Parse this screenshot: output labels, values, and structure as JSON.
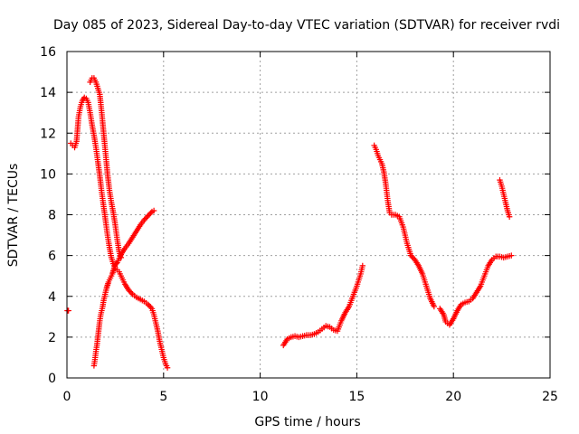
{
  "chart_data": {
    "type": "scatter",
    "title": "Day 085 of 2023, Sidereal Day-to-day VTEC variation (SDTVAR) for receiver rvdi",
    "xlabel": "GPS time / hours",
    "ylabel": "SDTVAR / TECUs",
    "xlim": [
      0,
      25
    ],
    "ylim": [
      0,
      16
    ],
    "xticks": [
      0,
      5,
      10,
      15,
      20,
      25
    ],
    "yticks": [
      0,
      2,
      4,
      6,
      8,
      10,
      12,
      14,
      16
    ],
    "grid": true,
    "marker": "+",
    "color": "#ff0000",
    "series": [
      {
        "name": "arc-1",
        "x": [
          0.02,
          0.05,
          0.08
        ],
        "y": [
          3.3,
          3.3,
          3.3
        ]
      },
      {
        "name": "arc-2",
        "x": [
          0.2,
          0.3,
          0.4,
          0.5,
          0.55,
          0.6,
          0.7,
          0.8,
          0.9,
          1.0,
          1.1,
          1.2,
          1.3,
          1.4,
          1.5,
          1.6,
          1.7,
          1.8,
          1.9,
          2.0,
          2.1,
          2.2,
          2.3,
          2.4,
          2.5,
          2.6,
          2.7,
          2.8,
          2.9,
          3.0,
          3.2,
          3.4,
          3.6,
          3.8,
          4.0,
          4.2,
          4.4,
          4.5,
          4.6,
          4.7,
          4.8,
          4.9,
          5.0,
          5.1,
          5.2
        ],
        "y": [
          11.5,
          11.4,
          11.3,
          11.6,
          12.2,
          12.8,
          13.3,
          13.6,
          13.75,
          13.7,
          13.5,
          13.0,
          12.4,
          11.9,
          11.3,
          10.6,
          9.9,
          9.1,
          8.4,
          7.7,
          7.0,
          6.4,
          5.9,
          5.6,
          5.4,
          5.3,
          5.2,
          5.0,
          4.8,
          4.6,
          4.3,
          4.1,
          3.95,
          3.85,
          3.75,
          3.6,
          3.4,
          3.1,
          2.7,
          2.3,
          1.8,
          1.4,
          1.0,
          0.7,
          0.5
        ]
      },
      {
        "name": "arc-3",
        "x": [
          1.4,
          1.45,
          1.5,
          1.55,
          1.6,
          1.65,
          1.7,
          1.75,
          1.8,
          1.85,
          1.9,
          1.95,
          2.0,
          2.05,
          2.1,
          2.15,
          2.2,
          2.25,
          2.3,
          2.35,
          2.4,
          2.45,
          2.5,
          2.55,
          2.6,
          2.65,
          2.7,
          2.75,
          2.8,
          2.9,
          3.0,
          3.2,
          3.4,
          3.6,
          3.8,
          4.0,
          4.2,
          4.4,
          4.5
        ],
        "y": [
          0.6,
          0.9,
          1.3,
          1.6,
          2.0,
          2.4,
          2.8,
          3.1,
          3.3,
          3.5,
          3.8,
          4.0,
          4.2,
          4.4,
          4.55,
          4.7,
          4.8,
          4.9,
          5.0,
          5.1,
          5.25,
          5.4,
          5.55,
          5.6,
          5.65,
          5.75,
          5.85,
          5.95,
          6.05,
          6.2,
          6.35,
          6.6,
          6.9,
          7.2,
          7.5,
          7.75,
          7.95,
          8.15,
          8.2
        ]
      },
      {
        "name": "arc-4",
        "x": [
          1.2,
          1.3,
          1.4,
          1.5,
          1.6,
          1.7,
          1.8,
          1.9,
          2.0,
          2.1,
          2.2,
          2.3,
          2.4,
          2.5,
          2.6,
          2.7,
          2.8
        ],
        "y": [
          14.5,
          14.7,
          14.7,
          14.5,
          14.2,
          13.9,
          13.0,
          12.0,
          11.0,
          10.0,
          9.2,
          8.6,
          8.1,
          7.5,
          6.8,
          6.2,
          5.9
        ]
      },
      {
        "name": "arc-5",
        "x": [
          11.2,
          11.4,
          11.6,
          11.8,
          12.0,
          12.2,
          12.4,
          12.6,
          12.8,
          13.0,
          13.2,
          13.4,
          13.6,
          13.8,
          14.0,
          14.2,
          14.4,
          14.6,
          14.8,
          15.0,
          15.2,
          15.3
        ],
        "y": [
          1.6,
          1.9,
          2.0,
          2.05,
          2.0,
          2.05,
          2.1,
          2.1,
          2.15,
          2.25,
          2.4,
          2.55,
          2.5,
          2.35,
          2.3,
          2.8,
          3.2,
          3.5,
          4.0,
          4.5,
          5.1,
          5.5
        ]
      },
      {
        "name": "arc-6",
        "x": [
          15.9,
          16.0,
          16.1,
          16.2,
          16.3,
          16.4,
          16.5,
          16.6,
          16.7,
          16.8,
          17.0,
          17.2,
          17.4,
          17.6,
          17.8,
          18.0,
          18.2,
          18.4,
          18.6,
          18.8,
          19.0
        ],
        "y": [
          11.4,
          11.2,
          10.9,
          10.7,
          10.5,
          10.1,
          9.5,
          8.7,
          8.1,
          8.0,
          8.0,
          7.9,
          7.4,
          6.6,
          6.0,
          5.8,
          5.5,
          5.1,
          4.5,
          3.9,
          3.5
        ]
      },
      {
        "name": "arc-7",
        "x": [
          19.3,
          19.5,
          19.6,
          19.8,
          20.0,
          20.2,
          20.4,
          20.6,
          20.8,
          21.0,
          21.2,
          21.4,
          21.6,
          21.8,
          22.0,
          22.2,
          22.4,
          22.6,
          22.8,
          23.0
        ],
        "y": [
          3.4,
          3.1,
          2.75,
          2.6,
          2.9,
          3.3,
          3.6,
          3.7,
          3.75,
          3.9,
          4.2,
          4.5,
          5.0,
          5.5,
          5.8,
          5.95,
          5.95,
          5.9,
          5.95,
          6.0
        ]
      },
      {
        "name": "arc-8",
        "x": [
          22.4,
          22.5,
          22.6,
          22.7,
          22.8,
          22.9
        ],
        "y": [
          9.7,
          9.4,
          9.0,
          8.6,
          8.2,
          7.9
        ]
      }
    ]
  }
}
